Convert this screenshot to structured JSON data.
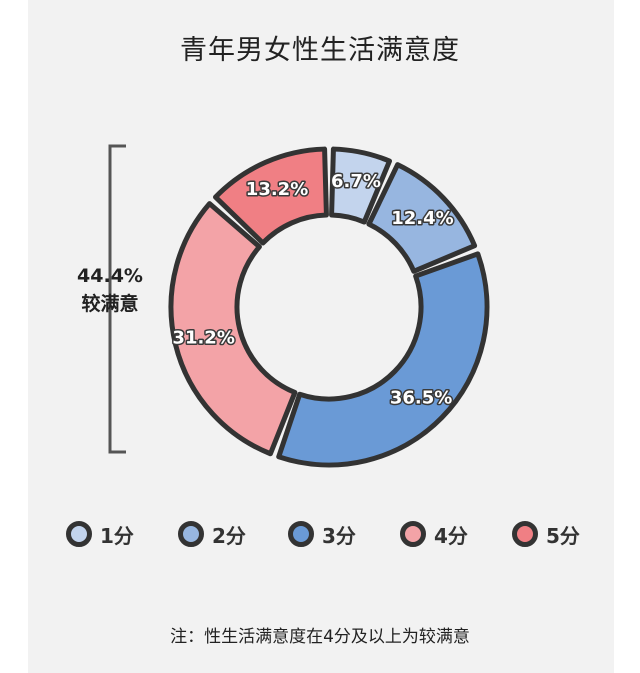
{
  "chart_data": {
    "type": "pie",
    "title": "青年男女性生活满意度",
    "categories": [
      "1分",
      "2分",
      "3分",
      "4分",
      "5分"
    ],
    "values": [
      6.7,
      12.4,
      36.5,
      31.2,
      13.2
    ],
    "value_labels": [
      "6.7%",
      "12.4%",
      "36.5%",
      "31.2%",
      "13.2%"
    ],
    "colors": [
      "#c3d4ed",
      "#97b6e0",
      "#6a9ad6",
      "#f3a3a7",
      "#f07f84"
    ],
    "legend": "bottom",
    "bracket": {
      "value": "44.4%",
      "label": "较满意"
    },
    "note": "注：性生活满意度在4分及以上为较满意"
  }
}
